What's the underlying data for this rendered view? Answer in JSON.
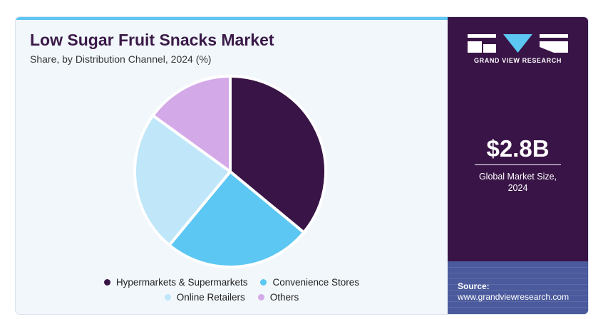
{
  "title": "Low Sugar Fruit Snacks Market",
  "subtitle": "Share, by Distribution Channel, 2024 (%)",
  "chart_data": {
    "type": "pie",
    "categories": [
      "Hypermarkets & Supermarkets",
      "Convenience Stores",
      "Online Retailers",
      "Others"
    ],
    "values": [
      36,
      25,
      24,
      15
    ],
    "colors": [
      "#391446",
      "#5bc7f2",
      "#bfe6f9",
      "#d4a9e8"
    ],
    "legend_position": "bottom"
  },
  "sidebar": {
    "brand": "GRAND VIEW RESEARCH",
    "market_size": "$2.8B",
    "market_label_line1": "Global Market Size,",
    "market_label_line2": "2024",
    "source_label": "Source:",
    "source_url": "www.grandviewresearch.com"
  }
}
